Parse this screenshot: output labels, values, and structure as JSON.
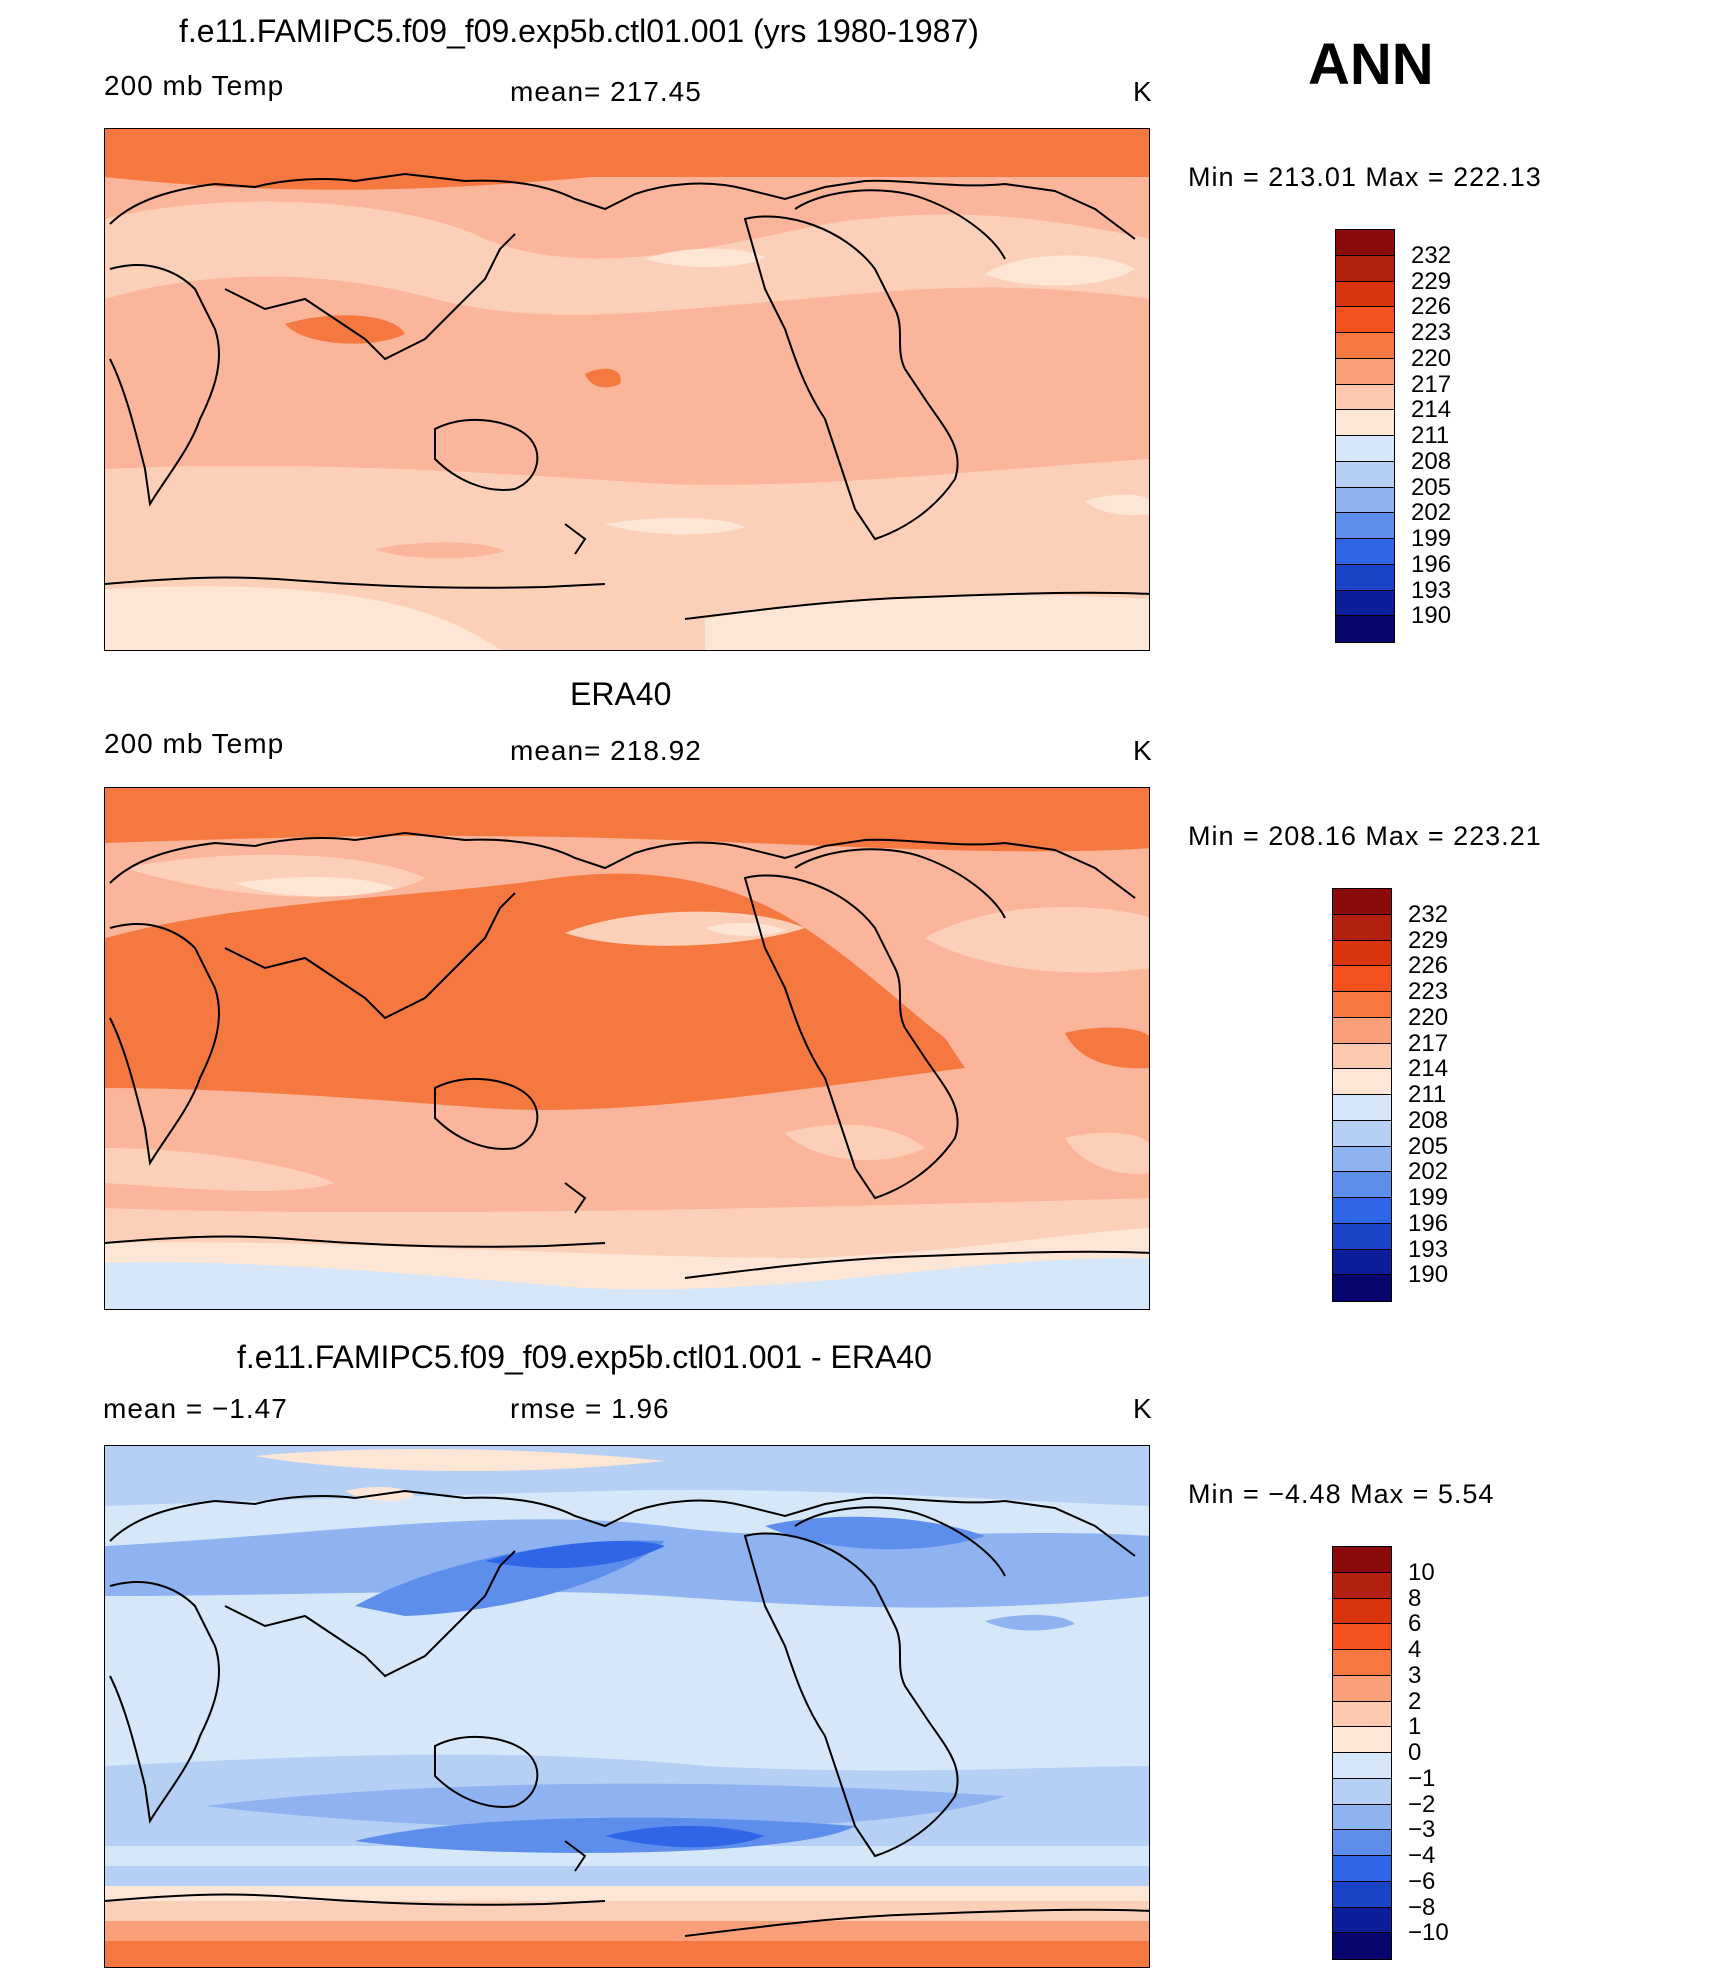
{
  "season": "ANN",
  "panels": [
    {
      "title": "f.e11.FAMIPC5.f09_f09.exp5b.ctl01.001 (yrs 1980-1987)",
      "left": "200 mb Temp",
      "center": "mean=  217.45",
      "right": "K",
      "minmax": "Min  =  213.01  Max  =  222.13"
    },
    {
      "title": "ERA40",
      "left": "200 mb Temp",
      "center": "mean=  218.92",
      "right": "K",
      "minmax": "Min  =  208.16  Max  =  223.21"
    },
    {
      "title": "f.e11.FAMIPC5.f09_f09.exp5b.ctl01.001 - ERA40",
      "left": "mean  =     −1.47",
      "center": "rmse  =      1.96",
      "right": "K",
      "minmax": "Min  =     −4.48  Max  =       5.54"
    }
  ],
  "chart_data": [
    {
      "type": "heatmap",
      "title": "f.e11.FAMIPC5.f09_f09.exp5b.ctl01.001 (yrs 1980-1987)",
      "variable": "200 mb Temp",
      "units": "K",
      "mean": 217.45,
      "min": 213.01,
      "max": 222.13,
      "colorbar_levels": [
        232,
        229,
        226,
        223,
        220,
        217,
        214,
        211,
        208,
        205,
        202,
        199,
        196,
        193,
        190
      ],
      "colorbar_colors": [
        "#8b0a0a",
        "#b3200f",
        "#d9340e",
        "#f4511e",
        "#f47840",
        "#f9a07a",
        "#fcc8ae",
        "#fde6d6",
        "#d6e7fa",
        "#b6d0f5",
        "#8fb3f0",
        "#5d8eec",
        "#2f66e8",
        "#1a44c8",
        "#0c1e99",
        "#06066e"
      ]
    },
    {
      "type": "heatmap",
      "title": "ERA40",
      "variable": "200 mb Temp",
      "units": "K",
      "mean": 218.92,
      "min": 208.16,
      "max": 223.21,
      "colorbar_levels": [
        232,
        229,
        226,
        223,
        220,
        217,
        214,
        211,
        208,
        205,
        202,
        199,
        196,
        193,
        190
      ],
      "colorbar_colors": [
        "#8b0a0a",
        "#b3200f",
        "#d9340e",
        "#f4511e",
        "#f47840",
        "#f9a07a",
        "#fcc8ae",
        "#fde6d6",
        "#d6e7fa",
        "#b6d0f5",
        "#8fb3f0",
        "#5d8eec",
        "#2f66e8",
        "#1a44c8",
        "#0c1e99",
        "#06066e"
      ]
    },
    {
      "type": "heatmap",
      "title": "f.e11.FAMIPC5.f09_f09.exp5b.ctl01.001 - ERA40",
      "units": "K",
      "mean": -1.47,
      "rmse": 1.96,
      "min": -4.48,
      "max": 5.54,
      "colorbar_levels": [
        10,
        8,
        6,
        4,
        3,
        2,
        1,
        0,
        -1,
        -2,
        -3,
        -4,
        -6,
        -8,
        -10
      ],
      "colorbar_labels": [
        "10",
        "8",
        "6",
        "4",
        "3",
        "2",
        "1",
        "0",
        "−1",
        "−2",
        "−3",
        "−4",
        "−6",
        "−8",
        "−10"
      ],
      "colorbar_colors": [
        "#8b0a0a",
        "#b3200f",
        "#d9340e",
        "#f4511e",
        "#f47840",
        "#f9a07a",
        "#fcc8ae",
        "#fde6d6",
        "#d6e7fa",
        "#b6d0f5",
        "#8fb3f0",
        "#5d8eec",
        "#2f66e8",
        "#1a44c8",
        "#0c1e99",
        "#06066e"
      ]
    }
  ]
}
